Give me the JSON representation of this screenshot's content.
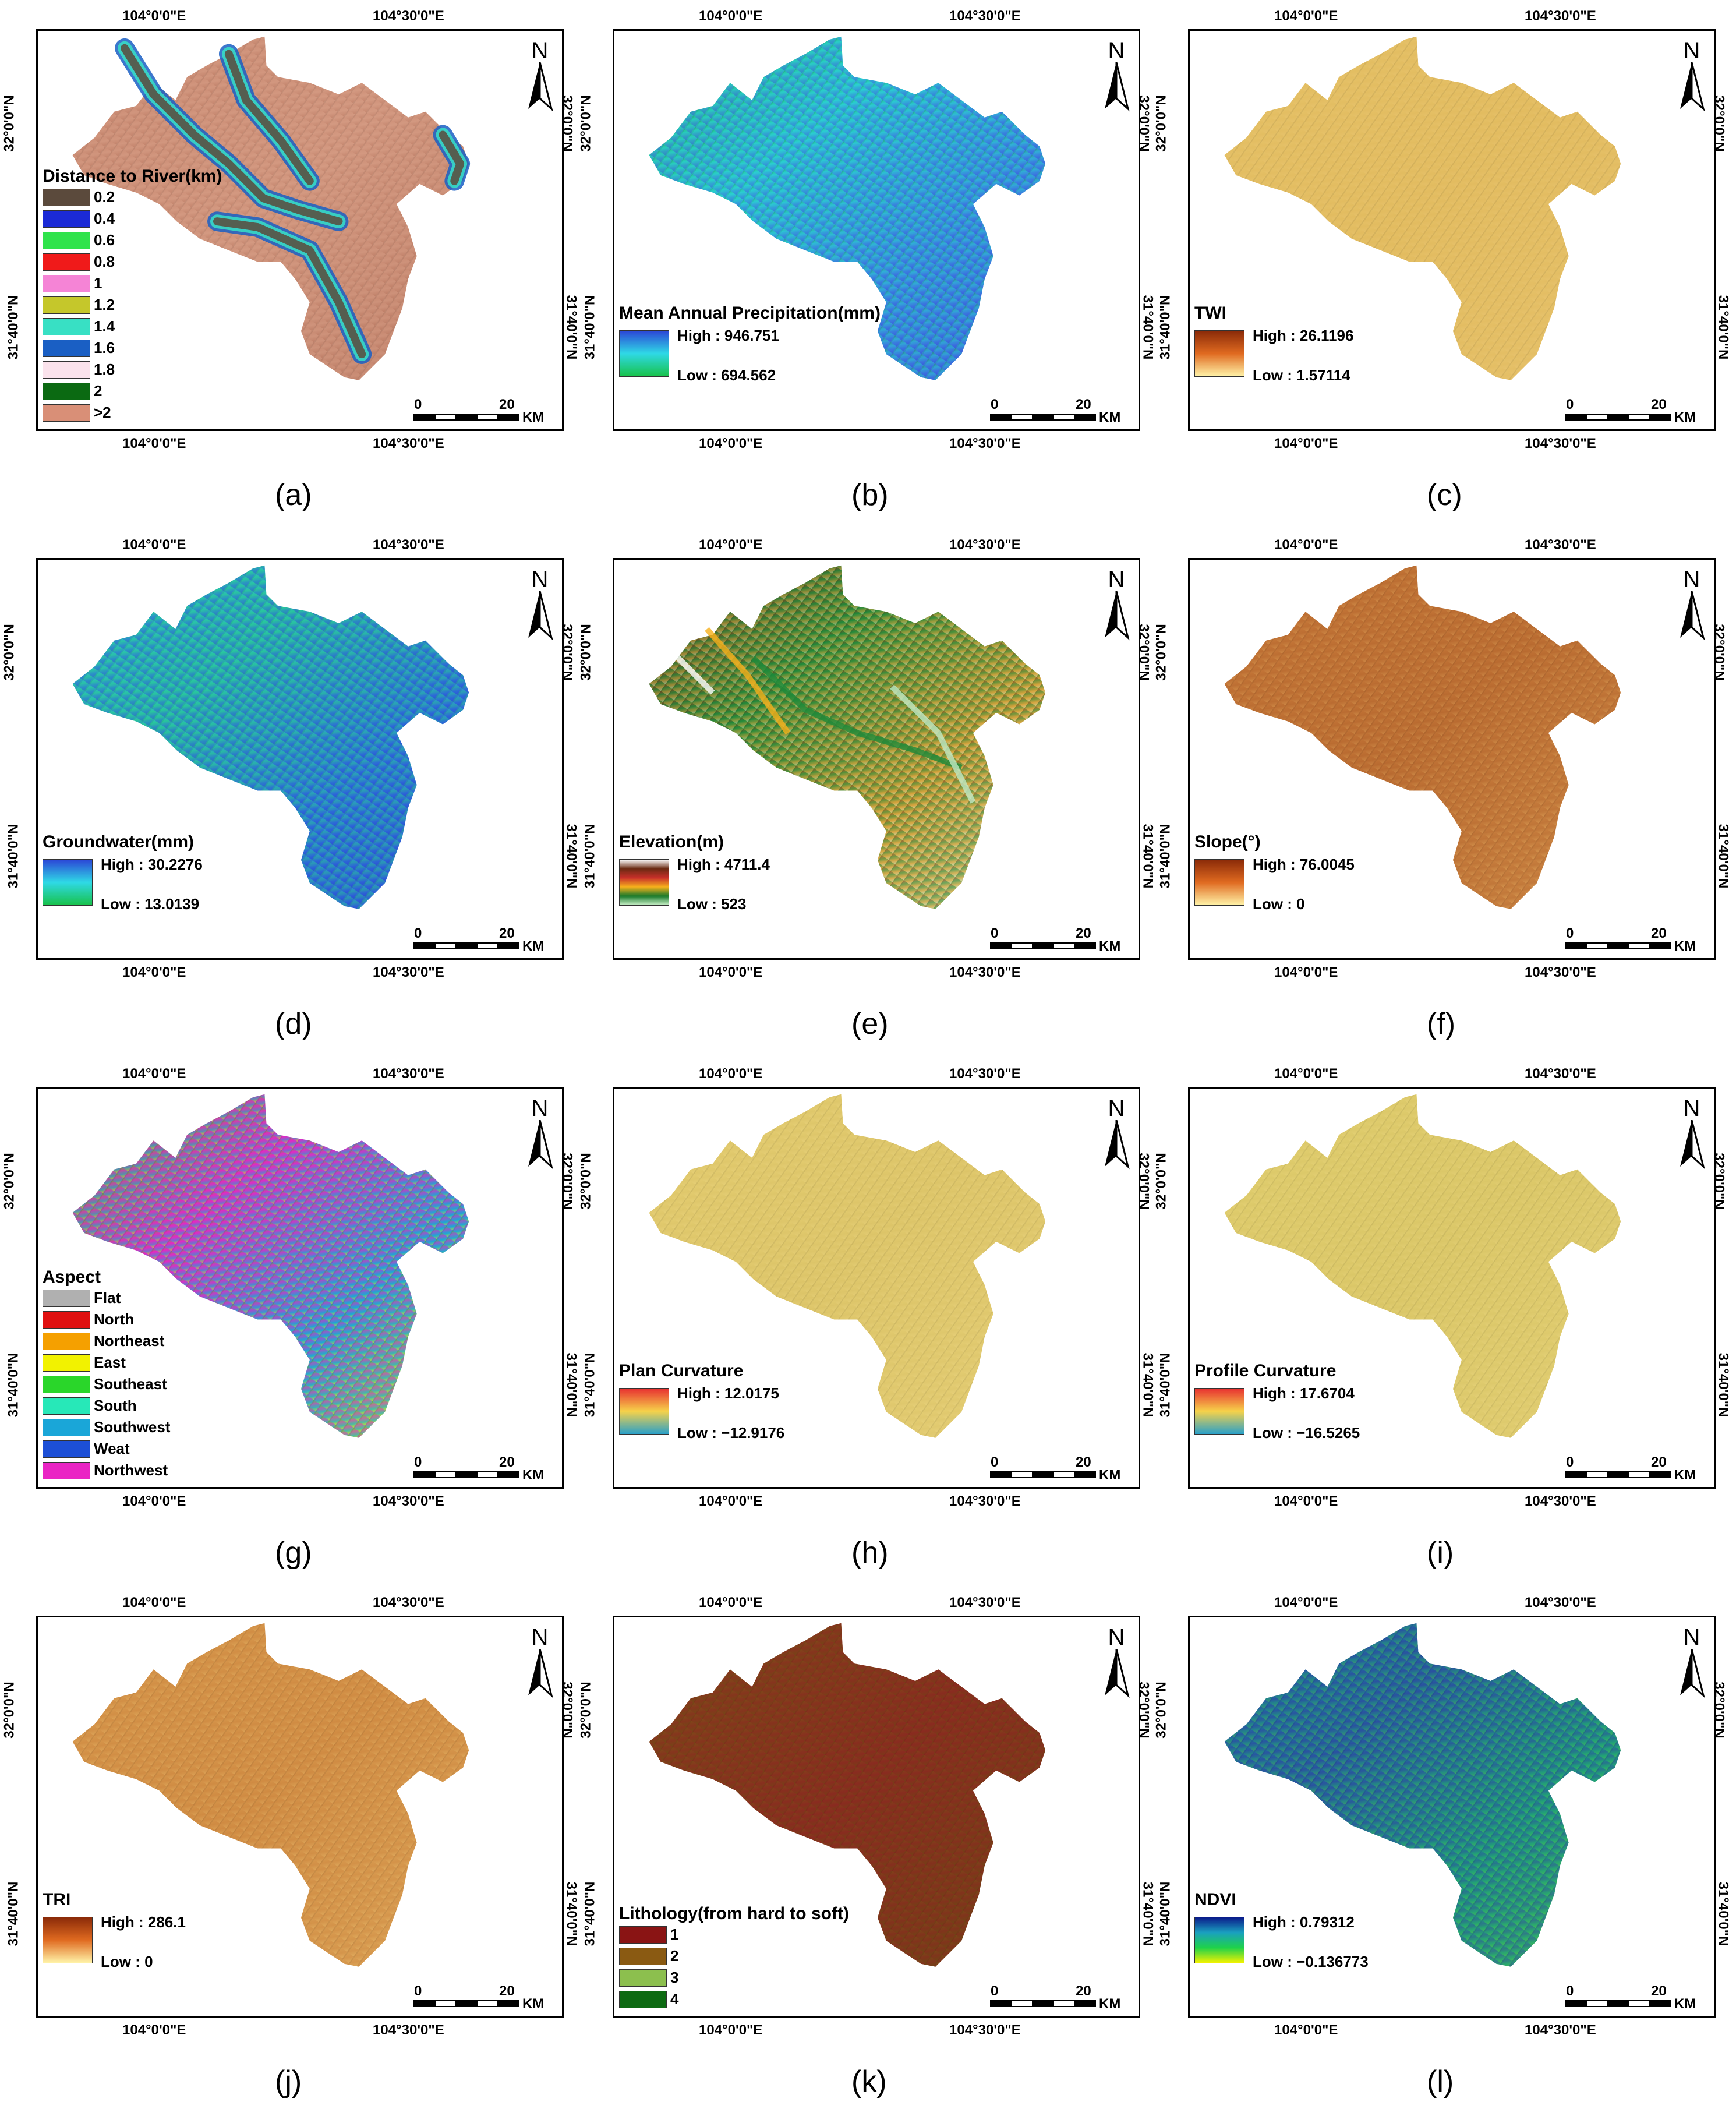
{
  "coords": {
    "lon_left": "104°0'0\"E",
    "lon_right": "104°30'0\"E",
    "lat_upper": "32°0'0\"N",
    "lat_lower": "31°40'0\"N"
  },
  "north_label": "N",
  "scale": {
    "zero": "0",
    "twenty": "20",
    "unit": "KM"
  },
  "panels": [
    {
      "caption": "(a)",
      "legend_type": "classes",
      "title": "Distance to River(km)",
      "classes": [
        {
          "label": "0.2",
          "color": "#5b4a3c"
        },
        {
          "label": "0.4",
          "color": "#1b2ad6"
        },
        {
          "label": "0.6",
          "color": "#2fe34b"
        },
        {
          "label": "0.8",
          "color": "#f01a1a"
        },
        {
          "label": "1",
          "color": "#f584d6"
        },
        {
          "label": "1.2",
          "color": "#c5c72b"
        },
        {
          "label": "1.4",
          "color": "#38e0c4"
        },
        {
          "label": "1.6",
          "color": "#1a5fc4"
        },
        {
          "label": "1.8",
          "color": "#fbe3ec"
        },
        {
          "label": "2",
          "color": "#0b6a12"
        },
        {
          "label": ">2",
          "color": "#d98f77"
        }
      ],
      "map_colors": [
        "#c98971",
        "#d49a82",
        "#b87760"
      ]
    },
    {
      "caption": "(b)",
      "legend_type": "ramp",
      "title": "Mean Annual Precipitation(mm)",
      "high": "High : 946.751",
      "low": "Low : 694.562",
      "ramp": [
        "#2b46d6",
        "#2fd9e6",
        "#18c24a"
      ],
      "map_colors": [
        "#22b870",
        "#2ad0d0",
        "#3a7ee0",
        "#3a52d8"
      ]
    },
    {
      "caption": "(c)",
      "legend_type": "ramp",
      "title": "TWI",
      "high": "High : 26.1196",
      "low": "Low : 1.57114",
      "ramp": [
        "#8a2a08",
        "#e06a20",
        "#fff3a8"
      ],
      "map_colors": [
        "#e6c46a",
        "#e2bb5f",
        "#e8c470"
      ]
    },
    {
      "caption": "(d)",
      "legend_type": "ramp",
      "title": "Groundwater(mm)",
      "high": "High : 30.2276",
      "low": "Low : 13.0139",
      "ramp": [
        "#2b46d6",
        "#2fd9e6",
        "#18c24a"
      ],
      "map_colors": [
        "#2fb0d8",
        "#28c79a",
        "#2c6ad8",
        "#2d48cf"
      ]
    },
    {
      "caption": "(e)",
      "legend_type": "ramp",
      "title": "Elevation(m)",
      "high": "High : 4711.4",
      "low": "Low : 523",
      "ramp": [
        "#ffffff",
        "#6a2a12",
        "#c8302a",
        "#f6b01c",
        "#1a7a2a",
        "#c8f0c8"
      ],
      "map_colors": [
        "#9c3418",
        "#1e8a3a",
        "#d9a23a",
        "#bfe8c4"
      ]
    },
    {
      "caption": "(f)",
      "legend_type": "ramp",
      "title": "Slope(°)",
      "high": "High : 76.0045",
      "low": "Low :  0",
      "ramp": [
        "#8a2a08",
        "#e06a20",
        "#fff3a8"
      ],
      "map_colors": [
        "#c87a3a",
        "#b86a30",
        "#d89a52"
      ]
    },
    {
      "caption": "(g)",
      "legend_type": "classes",
      "title": "Aspect",
      "classes": [
        {
          "label": "Flat",
          "color": "#b0b0b0"
        },
        {
          "label": "North",
          "color": "#e01010"
        },
        {
          "label": "Northeast",
          "color": "#f5a000"
        },
        {
          "label": "East",
          "color": "#f2f200"
        },
        {
          "label": "Southeast",
          "color": "#2ad62a"
        },
        {
          "label": "South",
          "color": "#27e8b8"
        },
        {
          "label": "Southwest",
          "color": "#1aa6d8"
        },
        {
          "label": "Weat",
          "color": "#1c4fd6"
        },
        {
          "label": "Northwest",
          "color": "#ea24c4"
        }
      ],
      "map_colors": [
        "#2ad62a",
        "#ea24c4",
        "#1aa6d8",
        "#f2f200"
      ]
    },
    {
      "caption": "(h)",
      "legend_type": "ramp",
      "title": "Plan Curvature",
      "high": "High : 12.0175",
      "low": "Low :  −12.9176",
      "ramp": [
        "#e83030",
        "#f6d24a",
        "#2aa0c8"
      ],
      "map_colors": [
        "#e6cf72",
        "#dcc468",
        "#e8d27c"
      ]
    },
    {
      "caption": "(i)",
      "legend_type": "ramp",
      "title": "Profile Curvature",
      "high": "High : 17.6704",
      "low": "Low : −16.5265",
      "ramp": [
        "#e83030",
        "#f6d24a",
        "#2aa0c8"
      ],
      "map_colors": [
        "#e2d070",
        "#dac667",
        "#e6d27a"
      ]
    },
    {
      "caption": "(j)",
      "legend_type": "ramp",
      "title": "TRI",
      "high": "High : 286.1",
      "low": "Low : 0",
      "ramp": [
        "#8a2a08",
        "#e06a20",
        "#fff3a8"
      ],
      "map_colors": [
        "#d89a4e",
        "#cf8a42",
        "#e2b062"
      ]
    },
    {
      "caption": "(k)",
      "legend_type": "classes",
      "title": "Lithology(from hard to soft)",
      "classes": [
        {
          "label": "1",
          "color": "#8a1414"
        },
        {
          "label": "2",
          "color": "#8a5a12"
        },
        {
          "label": "3",
          "color": "#8cbf4e"
        },
        {
          "label": "4",
          "color": "#0d6a12"
        }
      ],
      "map_colors": [
        "#7a5416",
        "#8a2a20",
        "#6a4a12"
      ]
    },
    {
      "caption": "(l)",
      "legend_type": "ramp",
      "title": "NDVI",
      "high": "High : 0.79312",
      "low": "Low : −0.136773",
      "ramp": [
        "#0a1a8a",
        "#1aa0c0",
        "#1ed24a",
        "#f2f200"
      ],
      "map_colors": [
        "#1e7aa0",
        "#2a50a0",
        "#20a078",
        "#4ac050"
      ]
    }
  ]
}
